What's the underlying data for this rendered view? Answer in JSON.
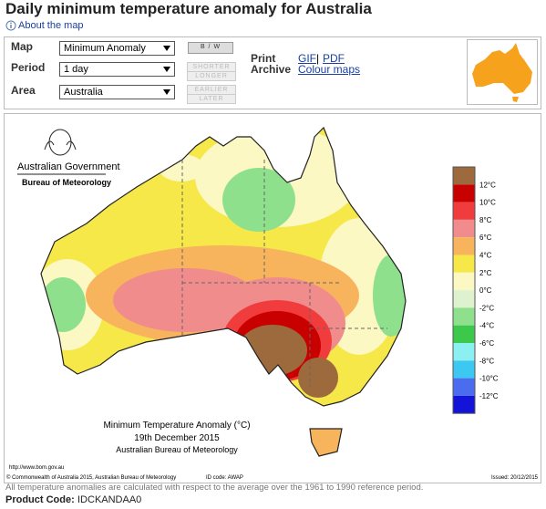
{
  "header": {
    "title": "Daily minimum temperature anomaly for Australia",
    "about_link": "About the map"
  },
  "controls": {
    "map": {
      "label": "Map",
      "value": "Minimum Anomaly"
    },
    "period": {
      "label": "Period",
      "value": "1 day"
    },
    "area": {
      "label": "Area",
      "value": "Australia"
    },
    "buttons": [
      "B / W",
      "SHORTER",
      "LONGER",
      "EARLIER",
      "LATER"
    ],
    "print": {
      "label": "Print",
      "links": [
        "GIF",
        "PDF"
      ],
      "separator": "|"
    },
    "archive": {
      "label": "Archive",
      "link": "Colour maps"
    }
  },
  "map": {
    "agency": "Australian Government",
    "bureau": "Bureau of Meteorology",
    "caption": [
      "Minimum Temperature Anomaly (°C)",
      "19th December 2015",
      "Australian Bureau of Meteorology"
    ],
    "url": "http://www.bom.gov.au",
    "copyright": "© Commonwealth of Australia 2015, Australian Bureau of Meteorology",
    "id_code": "ID code: AWAP",
    "issued": "Issued: 20/12/2015",
    "legend_labels": [
      "12°C",
      "10°C",
      "8°C",
      "6°C",
      "4°C",
      "2°C",
      "0°C",
      "-2°C",
      "-4°C",
      "-6°C",
      "-8°C",
      "-10°C",
      "-12°C"
    ],
    "legend_colors": [
      "#9c6a3c",
      "#c80000",
      "#f03c3c",
      "#f08c8c",
      "#f7b45c",
      "#f7e84a",
      "#fbf8c4",
      "#dff2d0",
      "#8ee08c",
      "#3cc84a",
      "#8cf0f0",
      "#3cc8f0",
      "#4c6cf0",
      "#1414d8"
    ]
  },
  "footnote": "All temperature anomalies are calculated with respect to the average over the 1961 to 1990 reference period.",
  "product_code": {
    "label": "Product Code:",
    "value": "IDCKANDAA0"
  }
}
